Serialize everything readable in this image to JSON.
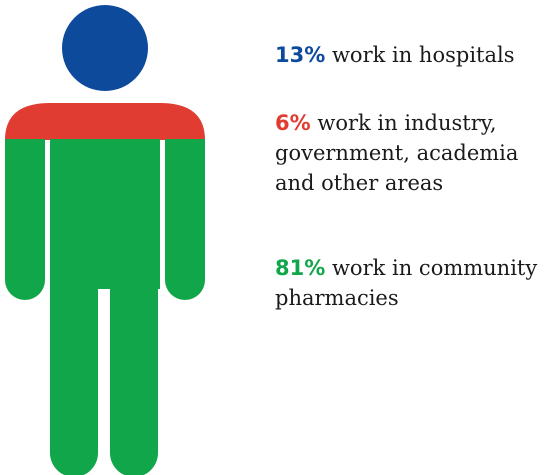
{
  "chart_data": {
    "type": "pie",
    "title": "",
    "categories": [
      "work in hospitals",
      "work in industry, government, academia and other areas",
      "work in community pharmacies"
    ],
    "values": [
      13,
      6,
      81
    ],
    "unit": "%",
    "colors": [
      "#0d4a9c",
      "#e03c31",
      "#12a64a"
    ]
  },
  "stats": [
    {
      "pct": "13%",
      "text": "work in hospitals",
      "color": "#0d4a9c"
    },
    {
      "pct": "6%",
      "text": "work in industry, government, academia and other areas",
      "color": "#e03c31"
    },
    {
      "pct": "81%",
      "text": "work in community pharmacies",
      "color": "#12a64a"
    }
  ]
}
